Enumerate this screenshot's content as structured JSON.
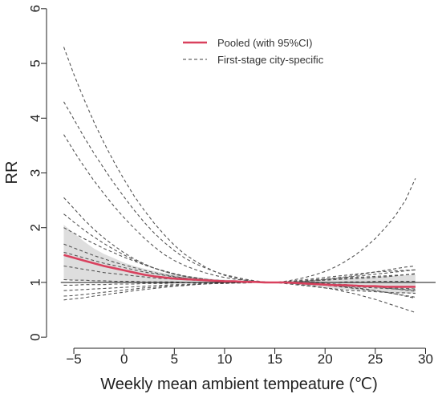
{
  "chart_data": {
    "type": "line",
    "xlabel": "Weekly mean ambient tempeature (℃)",
    "ylabel": "RR",
    "xlim": [
      -7,
      31
    ],
    "ylim": [
      -0.1,
      6.1
    ],
    "x_ticks": [
      -5,
      0,
      5,
      10,
      15,
      20,
      25,
      30
    ],
    "y_ticks": [
      0,
      1,
      2,
      3,
      4,
      5,
      6
    ],
    "x_tick_labels": [
      "−5",
      "0",
      "5",
      "10",
      "15",
      "20",
      "25",
      "30"
    ],
    "y_tick_labels": [
      "0",
      "1",
      "2",
      "3",
      "4",
      "5",
      "6"
    ],
    "reference_line": 1,
    "legend_position": "top-center",
    "grid": false,
    "pooled": {
      "name": "Pooled (with 95%CI)",
      "color": "#d9415e",
      "x": [
        -6,
        -5,
        -4,
        -3,
        -2,
        -1,
        0,
        1,
        2,
        3,
        4,
        5,
        6,
        7,
        8,
        9,
        10,
        11,
        12,
        13,
        14,
        15,
        16,
        17,
        18,
        19,
        20,
        21,
        22,
        23,
        24,
        25,
        26,
        27,
        28,
        29
      ],
      "y": [
        1.5,
        1.45,
        1.4,
        1.35,
        1.3,
        1.26,
        1.22,
        1.18,
        1.14,
        1.11,
        1.09,
        1.07,
        1.06,
        1.05,
        1.04,
        1.03,
        1.02,
        1.02,
        1.01,
        1.01,
        1.0,
        1.0,
        1.0,
        0.99,
        0.98,
        0.97,
        0.96,
        0.95,
        0.95,
        0.94,
        0.93,
        0.93,
        0.92,
        0.92,
        0.92,
        0.92
      ],
      "ci_lower": [
        1.05,
        1.04,
        1.03,
        1.02,
        1.01,
        1.0,
        0.99,
        0.98,
        0.98,
        0.98,
        0.98,
        0.98,
        0.98,
        0.98,
        0.99,
        0.99,
        0.99,
        0.99,
        1.0,
        1.0,
        1.0,
        1.0,
        0.98,
        0.97,
        0.95,
        0.93,
        0.91,
        0.89,
        0.87,
        0.86,
        0.84,
        0.83,
        0.82,
        0.81,
        0.8,
        0.8
      ],
      "ci_upper": [
        2.05,
        1.9,
        1.75,
        1.62,
        1.52,
        1.44,
        1.36,
        1.3,
        1.25,
        1.21,
        1.17,
        1.14,
        1.12,
        1.1,
        1.08,
        1.06,
        1.05,
        1.04,
        1.03,
        1.02,
        1.01,
        1.0,
        1.02,
        1.03,
        1.04,
        1.05,
        1.06,
        1.07,
        1.08,
        1.09,
        1.1,
        1.11,
        1.11,
        1.12,
        1.13,
        1.14
      ]
    },
    "city_specific": {
      "name": "First-stage city-specific",
      "color": "#555555",
      "x": [
        -6,
        -5,
        -4,
        -3,
        -2,
        -1,
        0,
        1,
        2,
        3,
        4,
        5,
        6,
        7,
        8,
        9,
        10,
        11,
        12,
        13,
        14,
        15,
        16,
        17,
        18,
        19,
        20,
        21,
        22,
        23,
        24,
        25,
        26,
        27,
        28,
        29
      ],
      "series": [
        {
          "y": [
            5.3,
            4.8,
            4.35,
            3.93,
            3.55,
            3.2,
            2.88,
            2.58,
            2.32,
            2.08,
            1.87,
            1.68,
            1.52,
            1.4,
            1.29,
            1.2,
            1.13,
            1.08,
            1.04,
            1.02,
            1.01,
            1.0,
            0.98,
            0.96,
            0.94,
            0.92,
            0.9,
            0.88,
            0.86,
            0.85,
            0.84,
            0.83,
            0.82,
            0.81,
            0.81,
            0.8
          ]
        },
        {
          "y": [
            4.3,
            3.98,
            3.66,
            3.36,
            3.08,
            2.81,
            2.56,
            2.32,
            2.1,
            1.9,
            1.73,
            1.58,
            1.45,
            1.35,
            1.27,
            1.2,
            1.14,
            1.1,
            1.06,
            1.03,
            1.01,
            1.0,
            0.99,
            0.98,
            0.97,
            0.96,
            0.95,
            0.94,
            0.93,
            0.92,
            0.91,
            0.9,
            0.89,
            0.88,
            0.87,
            0.86
          ]
        },
        {
          "y": [
            3.7,
            3.4,
            3.12,
            2.86,
            2.62,
            2.39,
            2.18,
            1.99,
            1.81,
            1.65,
            1.51,
            1.4,
            1.31,
            1.24,
            1.18,
            1.13,
            1.09,
            1.06,
            1.04,
            1.02,
            1.01,
            1.0,
            1.0,
            1.0,
            1.0,
            1.0,
            1.0,
            1.0,
            1.01,
            1.01,
            1.01,
            1.02,
            1.02,
            1.02,
            1.02,
            1.02
          ]
        },
        {
          "y": [
            2.55,
            2.35,
            2.15,
            1.97,
            1.81,
            1.67,
            1.54,
            1.43,
            1.34,
            1.26,
            1.2,
            1.15,
            1.11,
            1.08,
            1.05,
            1.03,
            1.02,
            1.01,
            1.0,
            1.0,
            1.0,
            1.0,
            1.02,
            1.05,
            1.09,
            1.14,
            1.2,
            1.28,
            1.38,
            1.5,
            1.64,
            1.8,
            2.0,
            2.22,
            2.5,
            2.9
          ]
        },
        {
          "y": [
            2.25,
            2.1,
            1.96,
            1.83,
            1.71,
            1.6,
            1.5,
            1.41,
            1.33,
            1.26,
            1.2,
            1.15,
            1.11,
            1.08,
            1.06,
            1.04,
            1.03,
            1.02,
            1.01,
            1.0,
            1.0,
            1.0,
            1.0,
            1.0,
            0.99,
            0.98,
            0.97,
            0.96,
            0.95,
            0.94,
            0.93,
            0.92,
            0.91,
            0.9,
            0.89,
            0.88
          ]
        },
        {
          "y": [
            2.0,
            1.9,
            1.8,
            1.71,
            1.62,
            1.54,
            1.46,
            1.39,
            1.32,
            1.26,
            1.21,
            1.16,
            1.12,
            1.09,
            1.06,
            1.04,
            1.03,
            1.02,
            1.01,
            1.0,
            1.0,
            1.0,
            1.0,
            1.01,
            1.02,
            1.03,
            1.05,
            1.07,
            1.09,
            1.11,
            1.13,
            1.15,
            1.17,
            1.19,
            1.21,
            1.23
          ]
        },
        {
          "y": [
            1.7,
            1.63,
            1.56,
            1.49,
            1.43,
            1.37,
            1.32,
            1.27,
            1.22,
            1.18,
            1.14,
            1.11,
            1.08,
            1.06,
            1.04,
            1.03,
            1.02,
            1.01,
            1.0,
            1.0,
            1.0,
            1.0,
            0.99,
            0.98,
            0.97,
            0.96,
            0.95,
            0.93,
            0.91,
            0.89,
            0.87,
            0.85,
            0.82,
            0.79,
            0.76,
            0.73
          ]
        },
        {
          "y": [
            1.55,
            1.5,
            1.45,
            1.4,
            1.35,
            1.31,
            1.27,
            1.23,
            1.19,
            1.16,
            1.13,
            1.1,
            1.08,
            1.06,
            1.04,
            1.03,
            1.02,
            1.01,
            1.0,
            1.0,
            1.0,
            1.0,
            0.99,
            0.97,
            0.95,
            0.93,
            0.9,
            0.87,
            0.83,
            0.79,
            0.74,
            0.69,
            0.63,
            0.57,
            0.51,
            0.45
          ]
        },
        {
          "y": [
            1.3,
            1.27,
            1.24,
            1.21,
            1.18,
            1.16,
            1.14,
            1.12,
            1.1,
            1.08,
            1.07,
            1.06,
            1.05,
            1.04,
            1.03,
            1.02,
            1.02,
            1.01,
            1.01,
            1.0,
            1.0,
            1.0,
            1.0,
            0.99,
            0.98,
            0.97,
            0.96,
            0.94,
            0.92,
            0.9,
            0.88,
            0.85,
            0.82,
            0.79,
            0.75,
            0.71
          ]
        },
        {
          "y": [
            1.05,
            1.04,
            1.04,
            1.03,
            1.03,
            1.02,
            1.02,
            1.02,
            1.01,
            1.01,
            1.01,
            1.01,
            1.0,
            1.0,
            1.0,
            1.0,
            1.0,
            1.0,
            1.0,
            1.0,
            1.0,
            1.0,
            1.01,
            1.01,
            1.02,
            1.03,
            1.04,
            1.05,
            1.06,
            1.07,
            1.08,
            1.09,
            1.1,
            1.12,
            1.14,
            1.16
          ]
        },
        {
          "y": [
            0.95,
            0.95,
            0.96,
            0.96,
            0.96,
            0.97,
            0.97,
            0.97,
            0.98,
            0.98,
            0.98,
            0.99,
            0.99,
            0.99,
            0.99,
            0.99,
            1.0,
            1.0,
            1.0,
            1.0,
            1.0,
            1.0,
            1.01,
            1.03,
            1.05,
            1.07,
            1.09,
            1.11,
            1.13,
            1.15,
            1.17,
            1.19,
            1.2,
            1.21,
            1.22,
            1.23
          ]
        },
        {
          "y": [
            0.85,
            0.86,
            0.87,
            0.88,
            0.89,
            0.9,
            0.91,
            0.92,
            0.93,
            0.94,
            0.95,
            0.96,
            0.96,
            0.97,
            0.98,
            0.98,
            0.99,
            0.99,
            0.99,
            1.0,
            1.0,
            1.0,
            1.01,
            1.02,
            1.03,
            1.05,
            1.06,
            1.07,
            1.08,
            1.09,
            1.1,
            1.11,
            1.12,
            1.13,
            1.14,
            1.15
          ]
        },
        {
          "y": [
            0.75,
            0.76,
            0.78,
            0.8,
            0.82,
            0.84,
            0.86,
            0.88,
            0.9,
            0.91,
            0.93,
            0.94,
            0.95,
            0.96,
            0.97,
            0.98,
            0.98,
            0.99,
            0.99,
            1.0,
            1.0,
            1.0,
            1.0,
            1.0,
            1.0,
            0.99,
            0.98,
            0.97,
            0.96,
            0.95,
            0.94,
            0.92,
            0.9,
            0.88,
            0.86,
            0.84
          ]
        },
        {
          "y": [
            0.68,
            0.7,
            0.72,
            0.75,
            0.77,
            0.8,
            0.82,
            0.85,
            0.87,
            0.89,
            0.91,
            0.93,
            0.94,
            0.96,
            0.97,
            0.98,
            0.98,
            0.99,
            0.99,
            1.0,
            1.0,
            1.0,
            1.0,
            1.01,
            1.02,
            1.04,
            1.06,
            1.08,
            1.1,
            1.13,
            1.16,
            1.19,
            1.22,
            1.25,
            1.28,
            1.3
          ]
        }
      ]
    }
  }
}
